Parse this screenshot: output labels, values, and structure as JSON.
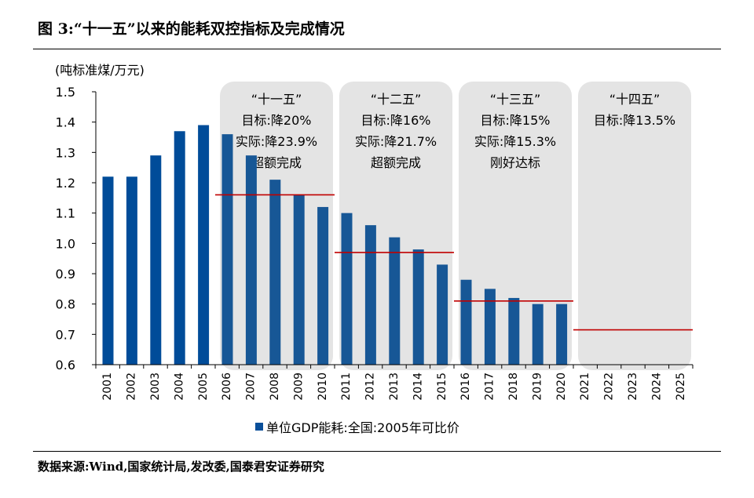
{
  "title": "图 3:“十一五”以来的能耗双控指标及完成情况",
  "source": "数据来源:Wind,国家统计局,发改委,国泰君安证券研究",
  "chart_data": {
    "type": "bar",
    "unit_label": "(吨标准煤/万元)",
    "categories": [
      "2001",
      "2002",
      "2003",
      "2004",
      "2005",
      "2006",
      "2007",
      "2008",
      "2009",
      "2010",
      "2011",
      "2012",
      "2013",
      "2014",
      "2015",
      "2016",
      "2017",
      "2018",
      "2019",
      "2020",
      "2021",
      "2022",
      "2023",
      "2024",
      "2025"
    ],
    "series": [
      {
        "name": "单位GDP能耗:全国:2005年可比价",
        "color": "#0a4f9a",
        "values": [
          1.22,
          1.22,
          1.29,
          1.37,
          1.39,
          1.36,
          1.29,
          1.21,
          1.16,
          1.12,
          1.1,
          1.06,
          1.02,
          0.98,
          0.93,
          0.88,
          0.85,
          0.82,
          0.8,
          0.8,
          null,
          null,
          null,
          null,
          null
        ]
      }
    ],
    "ylim": [
      0.6,
      1.5
    ],
    "yticks": [
      "0.6",
      "0.7",
      "0.8",
      "0.9",
      "1.0",
      "1.1",
      "1.2",
      "1.3",
      "1.4",
      "1.5"
    ],
    "periods": [
      {
        "start": "2006",
        "end": "2010",
        "lines": [
          "“十一五”",
          "目标:降20%",
          "实际:降23.9%",
          "超额完成"
        ],
        "target_value": 1.16
      },
      {
        "start": "2011",
        "end": "2015",
        "lines": [
          "“十二五”",
          "目标:降16%",
          "实际:降21.7%",
          "超额完成"
        ],
        "target_value": 0.97
      },
      {
        "start": "2016",
        "end": "2020",
        "lines": [
          "“十三五”",
          "目标:降15%",
          "实际:降15.3%",
          "刚好达标"
        ],
        "target_value": 0.81
      },
      {
        "start": "2021",
        "end": "2025",
        "lines": [
          "“十四五”",
          "目标:降13.5%"
        ],
        "target_value": 0.715
      }
    ],
    "target_line_color": "#c00000",
    "legend": "bottom"
  }
}
